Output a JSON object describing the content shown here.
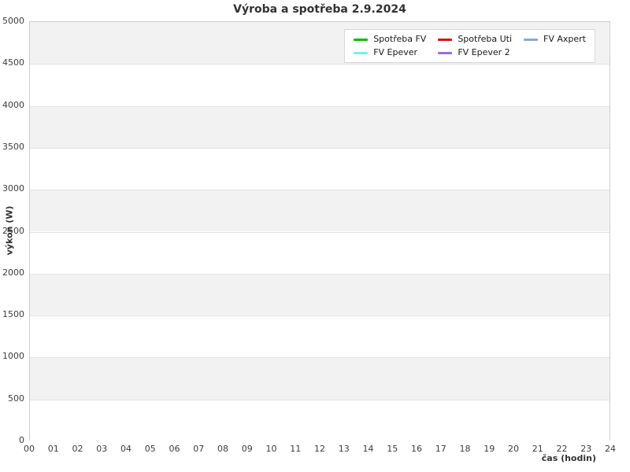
{
  "chart": {
    "title": "Výroba a spotřeba 2.9.2024",
    "xlabel": "čas (hodin)",
    "ylabel": "výkon (W)"
  },
  "chart_data": {
    "type": "line",
    "title": "Výroba a spotřeba 2.9.2024",
    "xlabel": "čas (hodin)",
    "ylabel": "výkon (W)",
    "xlim": [
      0,
      24
    ],
    "ylim": [
      0,
      5000
    ],
    "xticks": [
      "00",
      "01",
      "02",
      "03",
      "04",
      "05",
      "06",
      "07",
      "08",
      "09",
      "10",
      "11",
      "12",
      "13",
      "14",
      "15",
      "16",
      "17",
      "18",
      "19",
      "20",
      "21",
      "22",
      "23",
      "24"
    ],
    "yticks": [
      0,
      500,
      1000,
      1500,
      2000,
      2500,
      3000,
      3500,
      4000,
      4500,
      5000
    ],
    "grid": "horizontal gridlines every 500 W with alternating gray/white background bands",
    "legend_position": "upper right, 3 columns",
    "series": [
      {
        "name": "Spotřeba FV",
        "color": "#00c000",
        "values": []
      },
      {
        "name": "Spotřeba Uti",
        "color": "#e01010",
        "values": []
      },
      {
        "name": "FV Axpert",
        "color": "#8aa8d4",
        "values": []
      },
      {
        "name": "FV Epever",
        "color": "#70f2ec",
        "values": []
      },
      {
        "name": "FV Epever 2",
        "color": "#9571d6",
        "values": []
      }
    ],
    "note": "plot area is empty — no data lines are drawn for any series"
  },
  "style": {
    "band_gray": "#f2f2f2",
    "band_white": "#ffffff",
    "gridline_color": "#e3e3e3",
    "plot_border_color": "#cfcfcf",
    "text_color": "#3d3d3d"
  }
}
